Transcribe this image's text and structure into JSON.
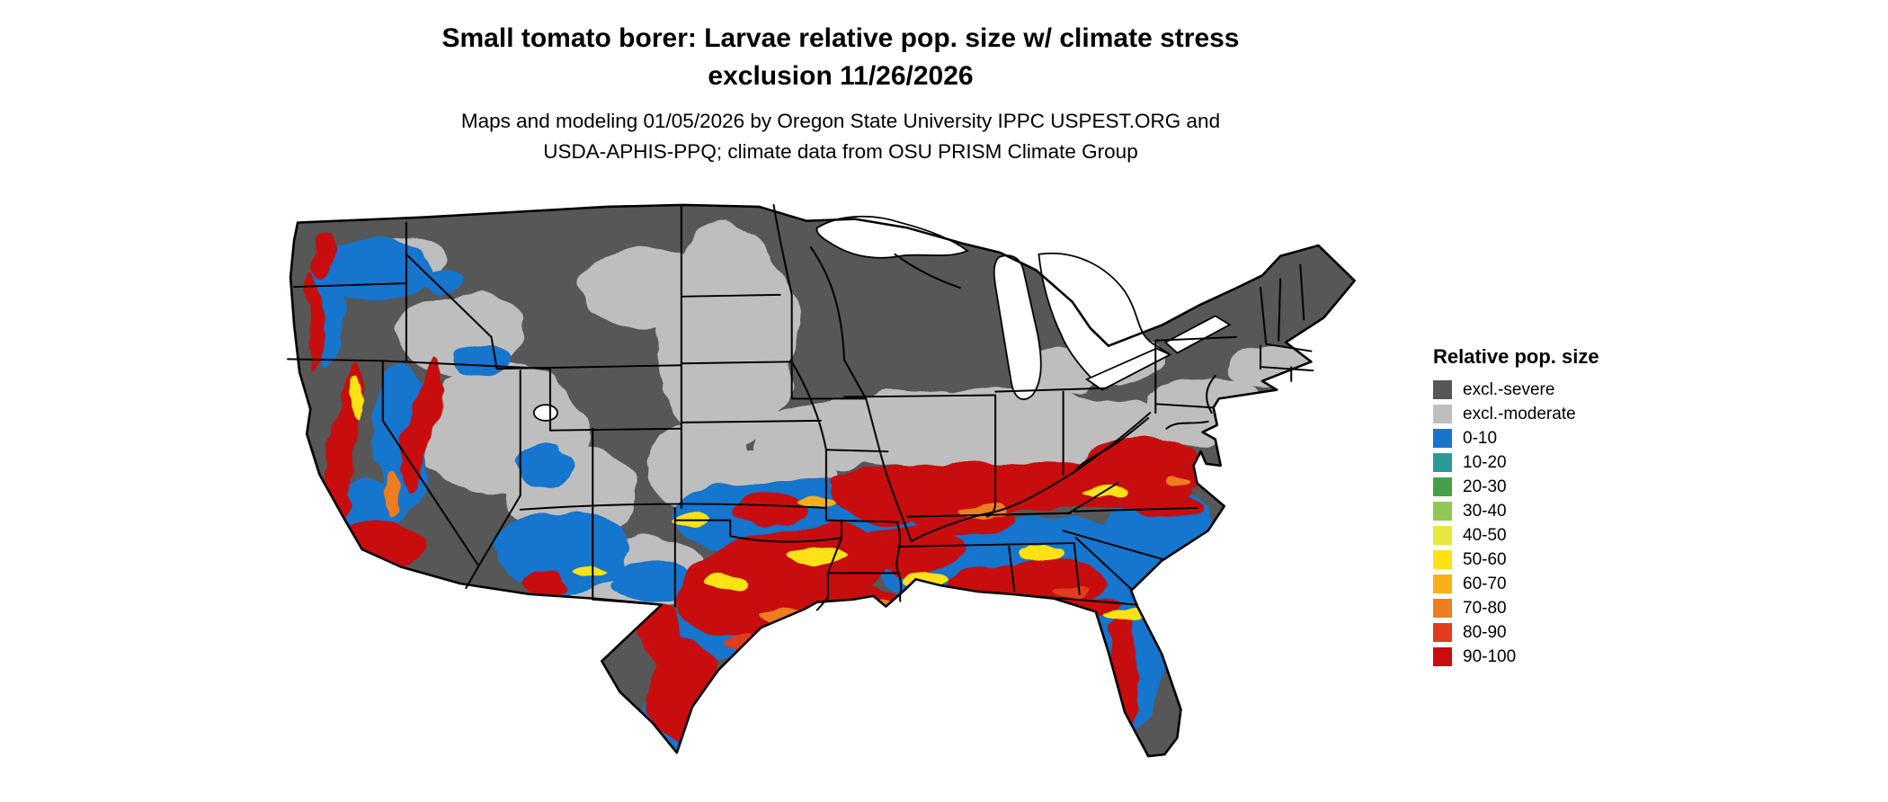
{
  "title": {
    "line1": "Small tomato borer: Larvae relative pop. size w/ climate stress",
    "line2": "exclusion 11/26/2026"
  },
  "subtitle": {
    "line1": "Maps and modeling 01/05/2026 by Oregon State University IPPC USPEST.ORG and",
    "line2": "USDA-APHIS-PPQ; climate data from OSU PRISM Climate Group"
  },
  "legend": {
    "title": "Relative pop. size",
    "items": [
      {
        "label": "excl.-severe",
        "color": "#575757"
      },
      {
        "label": "excl.-moderate",
        "color": "#BEBEBE"
      },
      {
        "label": "0-10",
        "color": "#1874CD"
      },
      {
        "label": "10-20",
        "color": "#2E9A97"
      },
      {
        "label": "20-30",
        "color": "#45A04A"
      },
      {
        "label": "30-40",
        "color": "#8FC857"
      },
      {
        "label": "40-50",
        "color": "#E6E841"
      },
      {
        "label": "50-60",
        "color": "#FFE212"
      },
      {
        "label": "60-70",
        "color": "#F9AF1C"
      },
      {
        "label": "70-80",
        "color": "#EE7D20"
      },
      {
        "label": "80-90",
        "color": "#DF3E1F"
      },
      {
        "label": "90-100",
        "color": "#C70D0D"
      }
    ]
  },
  "map": {
    "region": "Contiguous United States"
  }
}
